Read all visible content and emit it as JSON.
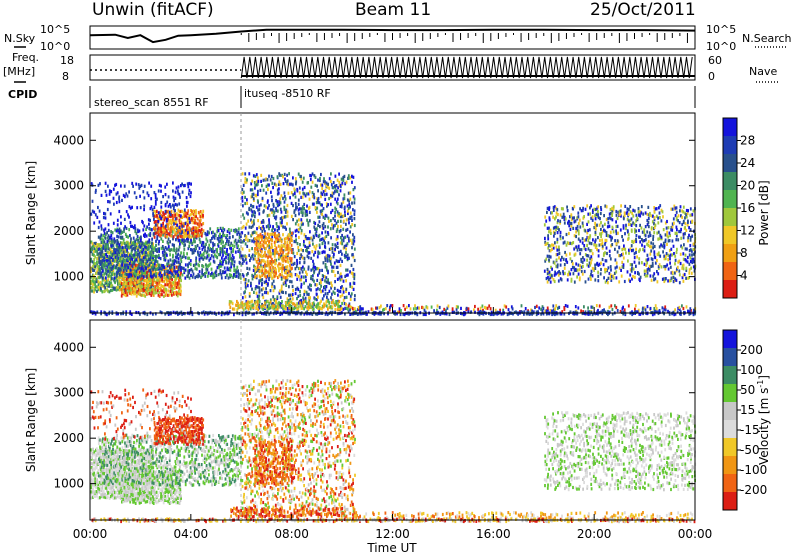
{
  "header": {
    "station": "Unwin (fitACF)",
    "beam": "Beam 11",
    "date": "25/Oct/2011"
  },
  "left_labels": {
    "nsky": "N.Sky",
    "freq": "Freq.",
    "freq_unit": "[MHz]",
    "cpid": "CPID"
  },
  "right_labels": {
    "nsearch": "N.Search",
    "nave": "Nave"
  },
  "cpid_labels": {
    "first": "stereo_scan 8551 RF",
    "second": "ituseq -8510 RF"
  },
  "colors": {
    "power": [
      "#1414dc",
      "#1e3cb4",
      "#28508c",
      "#3c8c64",
      "#50b450",
      "#a0c83c",
      "#f0c828",
      "#f0a014",
      "#f06414",
      "#dc1e14"
    ],
    "velocity": [
      "#1414dc",
      "#2850a0",
      "#3c8c64",
      "#64c832",
      "#c8c8c8",
      "#dcdcdc",
      "#f0c828",
      "#f09614",
      "#f06414",
      "#dc1e14"
    ]
  },
  "chart_data": [
    {
      "type": "line",
      "name": "noise-sky-panel",
      "ylabels_left": [
        "10^5",
        "10^0"
      ],
      "ylabels_right": [
        "10^5",
        "10^0"
      ],
      "x_hours": [
        0,
        1,
        1.5,
        2,
        2.5,
        3,
        3.5,
        4,
        5,
        6,
        7,
        8,
        10,
        12,
        14,
        16,
        18,
        20,
        22,
        24
      ],
      "y_log": [
        3.0,
        3.1,
        2.4,
        3.0,
        1.5,
        2.0,
        2.9,
        3.0,
        3.3,
        3.8,
        4.2,
        4.2,
        4.2,
        4.1,
        4.1,
        4.2,
        4.2,
        4.1,
        4.1,
        4.0
      ],
      "ylim": [
        0,
        5
      ]
    },
    {
      "type": "line",
      "name": "frequency-panel",
      "ylabels_left": [
        "18",
        "8"
      ],
      "ylabels_right": [
        "60",
        "0"
      ],
      "segments": [
        {
          "x_start": 0,
          "x_end": 6,
          "freq_mhz": 9.5
        },
        {
          "x_start": 6,
          "x_end": 24,
          "pattern": "alternating 8-18"
        }
      ],
      "ylim": [
        8,
        18
      ]
    },
    {
      "type": "heatmap",
      "name": "power-panel",
      "xlabel": "",
      "ylabel": "Slant Range [km]",
      "yticks": [
        "1000",
        "2000",
        "3000",
        "4000"
      ],
      "ylim": [
        200,
        4600
      ],
      "colorbar_label": "Power [dB]",
      "colorbar_ticks": [
        "4",
        "8",
        "12",
        "16",
        "20",
        "24",
        "28"
      ],
      "colorbar_range": [
        0,
        32
      ]
    },
    {
      "type": "heatmap",
      "name": "velocity-panel",
      "xlabel": "Time UT",
      "ylabel": "Slant Range [km]",
      "yticks": [
        "1000",
        "2000",
        "3000",
        "4000"
      ],
      "ylim": [
        200,
        4600
      ],
      "xticks": [
        "00:00",
        "04:00",
        "08:00",
        "12:00",
        "16:00",
        "20:00",
        "00:00"
      ],
      "colorbar_label": "Velocity [m s",
      "colorbar_label_exp": "-1",
      "colorbar_ticks": [
        "200",
        "100",
        "50",
        "15",
        "-15",
        "-50",
        "-100",
        "-200"
      ]
    }
  ]
}
